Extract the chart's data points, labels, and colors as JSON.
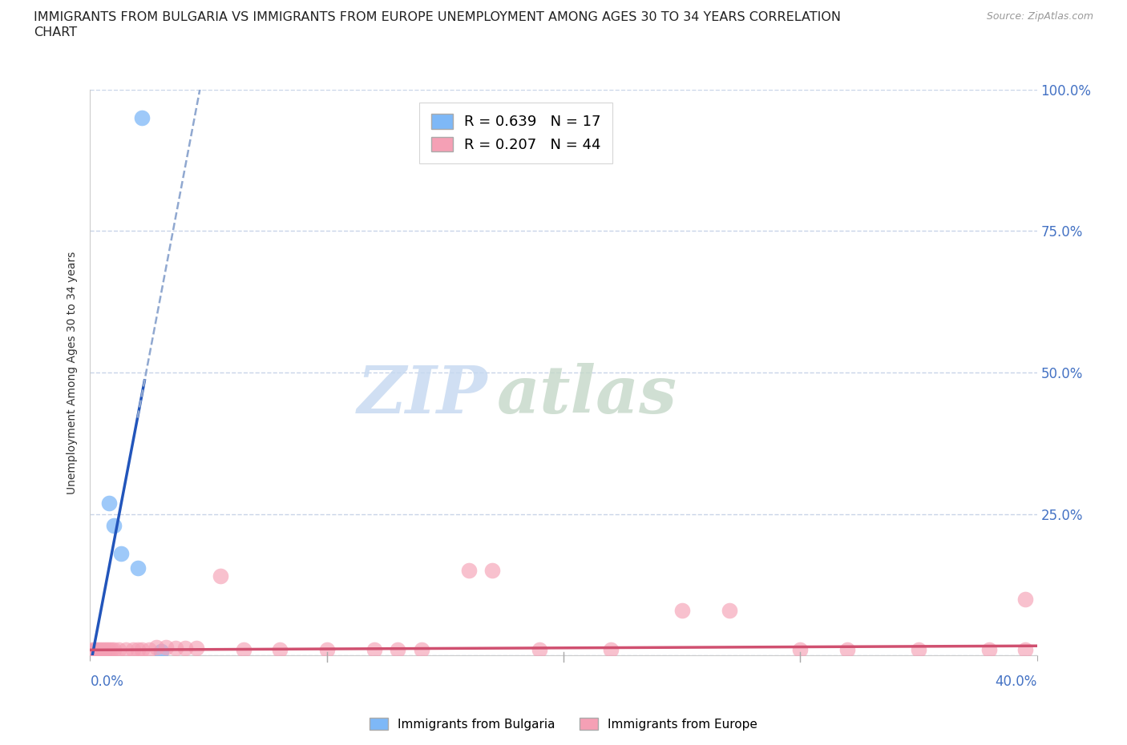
{
  "title_line1": "IMMIGRANTS FROM BULGARIA VS IMMIGRANTS FROM EUROPE UNEMPLOYMENT AMONG AGES 30 TO 34 YEARS CORRELATION",
  "title_line2": "CHART",
  "source": "Source: ZipAtlas.com",
  "ylabel": "Unemployment Among Ages 30 to 34 years",
  "xlim": [
    0.0,
    0.4
  ],
  "ylim": [
    0.0,
    1.0
  ],
  "yticks": [
    0.0,
    0.25,
    0.5,
    0.75,
    1.0
  ],
  "ytick_labels": [
    "",
    "25.0%",
    "50.0%",
    "75.0%",
    "100.0%"
  ],
  "xtick_positions": [
    0.0,
    0.1,
    0.2,
    0.3,
    0.4
  ],
  "bulgaria_color": "#7eb8f7",
  "europe_color": "#f5a0b5",
  "bulgaria_line_color": "#2255bb",
  "europe_line_color": "#d05070",
  "dashed_line_color": "#90a8d0",
  "legend_bulgaria_R": "0.639",
  "legend_bulgaria_N": "17",
  "legend_europe_R": "0.207",
  "legend_europe_N": "44",
  "watermark_zip": "ZIP",
  "watermark_atlas": "atlas",
  "watermark_color_zip": "#c5d8f0",
  "watermark_color_atlas": "#c5d8c8",
  "bg_color": "#ffffff",
  "grid_color": "#c8d4e8",
  "tick_label_color": "#4472c4",
  "title_fontsize": 11.5,
  "axis_label_fontsize": 10,
  "tick_fontsize": 12,
  "legend_fontsize": 13,
  "bulgaria_x": [
    0.001,
    0.001,
    0.002,
    0.002,
    0.003,
    0.003,
    0.004,
    0.004,
    0.005,
    0.005,
    0.006,
    0.008,
    0.01,
    0.013,
    0.02,
    0.022,
    0.03
  ],
  "bulgaria_y": [
    0.008,
    0.003,
    0.008,
    0.003,
    0.005,
    0.008,
    0.003,
    0.005,
    0.003,
    0.008,
    0.008,
    0.27,
    0.23,
    0.18,
    0.155,
    0.95,
    0.008
  ],
  "europe_x": [
    0.001,
    0.001,
    0.002,
    0.002,
    0.003,
    0.003,
    0.004,
    0.005,
    0.005,
    0.006,
    0.007,
    0.008,
    0.009,
    0.01,
    0.012,
    0.015,
    0.018,
    0.02,
    0.022,
    0.025,
    0.028,
    0.032,
    0.036,
    0.04,
    0.045,
    0.055,
    0.065,
    0.08,
    0.1,
    0.12,
    0.13,
    0.14,
    0.16,
    0.17,
    0.19,
    0.22,
    0.25,
    0.27,
    0.3,
    0.32,
    0.35,
    0.38,
    0.395,
    0.395
  ],
  "europe_y": [
    0.01,
    0.008,
    0.01,
    0.008,
    0.01,
    0.008,
    0.01,
    0.01,
    0.008,
    0.01,
    0.01,
    0.01,
    0.01,
    0.01,
    0.01,
    0.01,
    0.01,
    0.01,
    0.01,
    0.01,
    0.015,
    0.015,
    0.013,
    0.013,
    0.013,
    0.14,
    0.01,
    0.01,
    0.01,
    0.01,
    0.01,
    0.01,
    0.15,
    0.15,
    0.01,
    0.01,
    0.08,
    0.08,
    0.01,
    0.01,
    0.01,
    0.01,
    0.1,
    0.01
  ]
}
